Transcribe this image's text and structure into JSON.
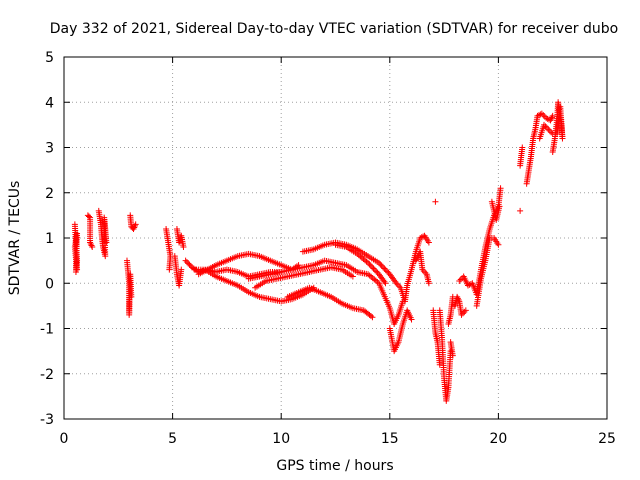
{
  "chart_data": {
    "type": "scatter",
    "title": "Day 332 of 2021, Sidereal Day-to-day VTEC variation (SDTVAR) for receiver dubo",
    "xlabel": "GPS time / hours",
    "ylabel": "SDTVAR / TECUs",
    "xlim": [
      0,
      25
    ],
    "ylim": [
      -3,
      5
    ],
    "xticks": [
      0,
      5,
      10,
      15,
      20,
      25
    ],
    "yticks": [
      -3,
      -2,
      -1,
      0,
      1,
      2,
      3,
      4,
      5
    ],
    "grid": true,
    "marker": "+",
    "series": [
      {
        "name": "SDTVAR",
        "color": "#ff0000",
        "segments": [
          [
            [
              0.5,
              1.3
            ],
            [
              0.55,
              0.9
            ],
            [
              0.6,
              0.5
            ],
            [
              0.55,
              0.25
            ],
            [
              0.6,
              1.1
            ],
            [
              0.5,
              0.8
            ],
            [
              0.6,
              0.3
            ]
          ],
          [
            [
              1.1,
              1.5
            ],
            [
              1.2,
              1.45
            ],
            [
              1.2,
              0.9
            ],
            [
              1.3,
              0.8
            ]
          ],
          [
            [
              1.6,
              1.6
            ],
            [
              1.7,
              1.3
            ],
            [
              1.75,
              1.0
            ],
            [
              1.8,
              0.8
            ],
            [
              1.9,
              0.6
            ],
            [
              1.85,
              1.45
            ],
            [
              1.9,
              1.2
            ],
            [
              1.95,
              0.9
            ]
          ],
          [
            [
              2.9,
              0.5
            ],
            [
              3.0,
              0.0
            ],
            [
              3.0,
              -0.4
            ],
            [
              3.0,
              -0.7
            ],
            [
              3.05,
              0.2
            ],
            [
              3.1,
              -0.3
            ]
          ],
          [
            [
              3.05,
              1.5
            ],
            [
              3.1,
              1.25
            ],
            [
              3.2,
              1.2
            ],
            [
              3.3,
              1.3
            ]
          ],
          [
            [
              4.7,
              1.2
            ],
            [
              4.8,
              0.9
            ],
            [
              4.9,
              0.6
            ],
            [
              4.85,
              0.3
            ]
          ],
          [
            [
              5.1,
              0.6
            ],
            [
              5.2,
              0.2
            ],
            [
              5.3,
              -0.05
            ],
            [
              5.4,
              0.3
            ]
          ],
          [
            [
              5.2,
              1.2
            ],
            [
              5.3,
              0.9
            ],
            [
              5.4,
              1.05
            ],
            [
              5.5,
              0.8
            ]
          ],
          [
            [
              5.6,
              0.5
            ],
            [
              5.9,
              0.35
            ],
            [
              6.2,
              0.25
            ],
            [
              6.6,
              0.3
            ],
            [
              7.0,
              0.25
            ],
            [
              7.5,
              0.3
            ],
            [
              8.0,
              0.25
            ],
            [
              8.5,
              0.15
            ],
            [
              9.0,
              0.2
            ],
            [
              9.5,
              0.25
            ],
            [
              10.0,
              0.25
            ]
          ],
          [
            [
              6.2,
              0.2
            ],
            [
              6.6,
              0.3
            ],
            [
              7.0,
              0.4
            ],
            [
              7.5,
              0.5
            ],
            [
              8.0,
              0.6
            ],
            [
              8.5,
              0.65
            ],
            [
              9.0,
              0.6
            ],
            [
              9.5,
              0.5
            ],
            [
              10.0,
              0.4
            ],
            [
              10.5,
              0.3
            ],
            [
              10.8,
              0.4
            ]
          ],
          [
            [
              6.0,
              0.3
            ],
            [
              6.5,
              0.3
            ],
            [
              7.0,
              0.15
            ],
            [
              7.5,
              0.05
            ],
            [
              8.0,
              -0.05
            ],
            [
              8.5,
              -0.2
            ],
            [
              9.0,
              -0.3
            ],
            [
              9.5,
              -0.35
            ],
            [
              10.0,
              -0.4
            ],
            [
              10.5,
              -0.35
            ],
            [
              11.0,
              -0.25
            ],
            [
              11.5,
              -0.1
            ]
          ],
          [
            [
              8.5,
              0.1
            ],
            [
              9.0,
              0.15
            ],
            [
              9.5,
              0.2
            ],
            [
              10.0,
              0.25
            ],
            [
              10.5,
              0.3
            ],
            [
              11.0,
              0.35
            ],
            [
              11.5,
              0.4
            ],
            [
              12.0,
              0.5
            ],
            [
              12.5,
              0.45
            ],
            [
              13.0,
              0.4
            ],
            [
              13.5,
              0.25
            ],
            [
              14.0,
              0.2
            ],
            [
              14.5,
              0.0
            ],
            [
              15.0,
              -0.55
            ],
            [
              15.2,
              -0.9
            ],
            [
              15.4,
              -0.7
            ],
            [
              15.6,
              -0.4
            ]
          ],
          [
            [
              8.8,
              -0.1
            ],
            [
              9.3,
              0.05
            ],
            [
              9.8,
              0.1
            ],
            [
              10.3,
              0.15
            ],
            [
              10.8,
              0.2
            ],
            [
              11.3,
              0.25
            ],
            [
              11.8,
              0.3
            ],
            [
              12.3,
              0.35
            ],
            [
              12.8,
              0.3
            ],
            [
              13.3,
              0.15
            ]
          ],
          [
            [
              11.0,
              0.7
            ],
            [
              11.5,
              0.75
            ],
            [
              12.0,
              0.85
            ],
            [
              12.5,
              0.9
            ],
            [
              13.0,
              0.85
            ],
            [
              13.5,
              0.75
            ],
            [
              14.0,
              0.6
            ],
            [
              14.5,
              0.45
            ],
            [
              15.0,
              0.2
            ],
            [
              15.3,
              0.0
            ],
            [
              15.5,
              -0.1
            ],
            [
              15.7,
              -0.4
            ],
            [
              15.8,
              -0.05
            ],
            [
              16.0,
              0.3
            ],
            [
              16.2,
              0.7
            ],
            [
              16.4,
              1.0
            ],
            [
              16.6,
              1.05
            ],
            [
              16.8,
              0.9
            ]
          ],
          [
            [
              12.5,
              0.85
            ],
            [
              13.0,
              0.8
            ],
            [
              13.5,
              0.65
            ],
            [
              14.0,
              0.45
            ],
            [
              14.5,
              0.2
            ],
            [
              14.8,
              0.0
            ]
          ],
          [
            [
              10.3,
              -0.3
            ],
            [
              10.8,
              -0.2
            ],
            [
              11.3,
              -0.1
            ],
            [
              11.8,
              -0.2
            ],
            [
              12.3,
              -0.3
            ],
            [
              12.8,
              -0.45
            ],
            [
              13.3,
              -0.55
            ],
            [
              13.8,
              -0.6
            ],
            [
              14.2,
              -0.75
            ]
          ],
          [
            [
              15.0,
              -1.0
            ],
            [
              15.2,
              -1.5
            ],
            [
              15.4,
              -1.3
            ],
            [
              15.6,
              -0.9
            ],
            [
              15.8,
              -0.6
            ],
            [
              16.0,
              -0.8
            ]
          ],
          [
            [
              16.2,
              0.5
            ],
            [
              16.4,
              0.7
            ],
            [
              16.5,
              0.3
            ],
            [
              16.7,
              0.2
            ],
            [
              16.8,
              0.0
            ]
          ],
          [
            [
              17.1,
              1.8
            ]
          ],
          [
            [
              17.0,
              -0.6
            ],
            [
              17.1,
              -1.1
            ],
            [
              17.2,
              -1.3
            ],
            [
              17.3,
              -1.8
            ]
          ],
          [
            [
              17.3,
              -0.6
            ],
            [
              17.4,
              -1.2
            ],
            [
              17.5,
              -2.1
            ],
            [
              17.6,
              -2.6
            ],
            [
              17.7,
              -2.3
            ],
            [
              17.8,
              -1.5
            ]
          ],
          [
            [
              17.7,
              -0.9
            ],
            [
              17.8,
              -0.7
            ],
            [
              17.9,
              -0.3
            ]
          ],
          [
            [
              17.8,
              -1.3
            ],
            [
              17.9,
              -1.6
            ]
          ],
          [
            [
              18.0,
              -0.5
            ],
            [
              18.1,
              -0.3
            ],
            [
              18.2,
              -0.4
            ],
            [
              18.3,
              -0.7
            ],
            [
              18.5,
              -0.6
            ]
          ],
          [
            [
              18.2,
              0.05
            ],
            [
              18.4,
              0.15
            ],
            [
              18.6,
              -0.05
            ],
            [
              18.8,
              0.0
            ],
            [
              19.0,
              -0.25
            ],
            [
              19.2,
              0.3
            ],
            [
              19.4,
              0.8
            ],
            [
              19.6,
              1.2
            ],
            [
              19.8,
              1.5
            ],
            [
              20.0,
              1.7
            ],
            [
              20.1,
              2.1
            ]
          ],
          [
            [
              19.0,
              -0.5
            ],
            [
              19.2,
              0.1
            ],
            [
              19.4,
              0.5
            ],
            [
              19.6,
              1.0
            ],
            [
              19.8,
              1.0
            ],
            [
              20.0,
              0.85
            ]
          ],
          [
            [
              19.7,
              1.8
            ],
            [
              19.9,
              1.4
            ],
            [
              20.05,
              1.7
            ]
          ],
          [
            [
              21.0,
              1.6
            ]
          ],
          [
            [
              21.0,
              2.6
            ],
            [
              21.1,
              3.0
            ]
          ],
          [
            [
              21.3,
              2.2
            ],
            [
              21.4,
              2.5
            ],
            [
              21.5,
              2.8
            ],
            [
              21.6,
              3.2
            ],
            [
              21.7,
              3.4
            ],
            [
              21.8,
              3.7
            ],
            [
              22.0,
              3.75
            ],
            [
              22.2,
              3.65
            ],
            [
              22.4,
              3.6
            ],
            [
              22.5,
              3.7
            ]
          ],
          [
            [
              21.9,
              3.2
            ],
            [
              22.1,
              3.5
            ],
            [
              22.3,
              3.4
            ],
            [
              22.5,
              3.3
            ]
          ],
          [
            [
              22.5,
              2.9
            ],
            [
              22.6,
              3.2
            ],
            [
              22.7,
              3.6
            ],
            [
              22.75,
              4.0
            ],
            [
              22.8,
              3.8
            ],
            [
              22.9,
              3.5
            ],
            [
              22.95,
              3.2
            ],
            [
              22.85,
              3.9
            ],
            [
              22.7,
              3.3
            ]
          ]
        ]
      }
    ]
  }
}
